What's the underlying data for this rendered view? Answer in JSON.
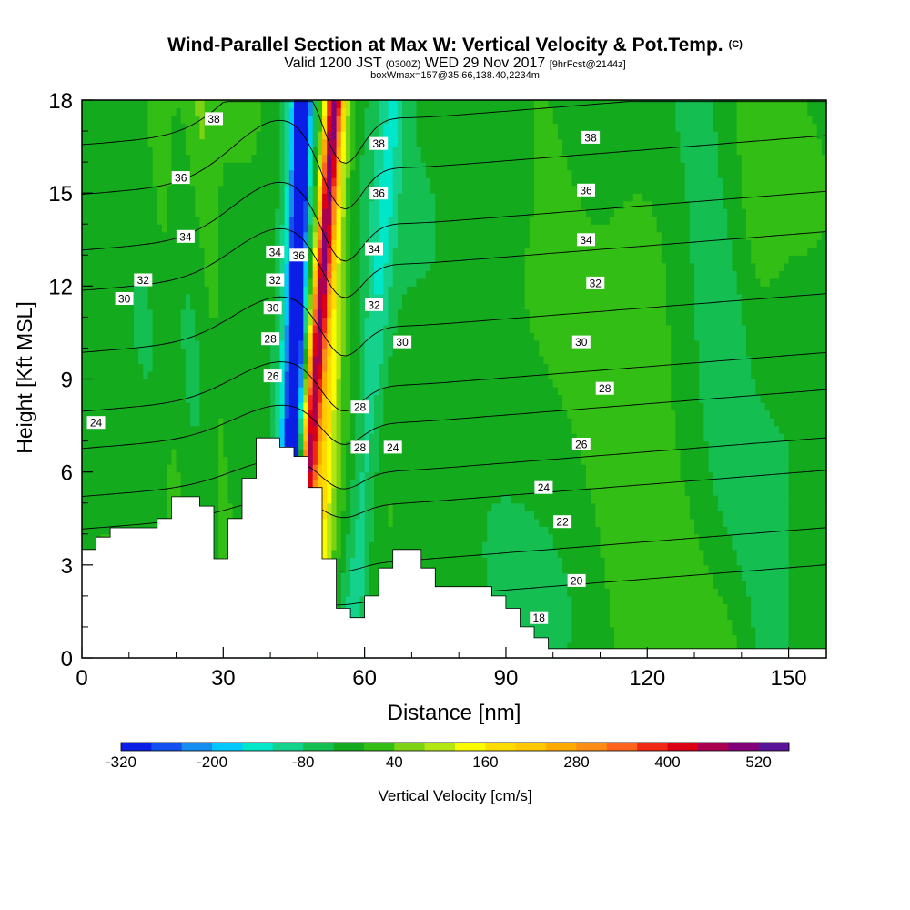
{
  "header": {
    "title": "Wind-Parallel Section at Max W: Vertical Velocity & Pot.Temp.",
    "copyright": "(C)",
    "valid_prefix": "Valid 1200 JST",
    "valid_utc": "(0300Z)",
    "valid_date": "WED 29 Nov 2017",
    "forecast": "[9hrFcst@2144z]",
    "box_info": "boxWmax=157@35.66,138.40,2234m"
  },
  "colorbar": {
    "label": "Vertical Velocity [cm/s]",
    "tick_labels": [
      "-320",
      "-200",
      "-80",
      "40",
      "160",
      "280",
      "400",
      "520"
    ],
    "colors": [
      "#0a1ee6",
      "#1450f0",
      "#148cf0",
      "#00c8ff",
      "#00e6c8",
      "#14d28c",
      "#14be50",
      "#14aa1e",
      "#32be14",
      "#7dd214",
      "#b4e614",
      "#fafa00",
      "#ffdc00",
      "#ffc800",
      "#ffaa00",
      "#ff8c14",
      "#ff641e",
      "#f02814",
      "#dc0014",
      "#aa0050",
      "#820078",
      "#5a1496"
    ]
  },
  "chart_data": {
    "type": "heatmap",
    "title": "Wind-Parallel Section at Max W: Vertical Velocity & Pot.Temp.",
    "xlabel": "Distance [nm]",
    "ylabel": "Height [Kft MSL]",
    "xlim": [
      0,
      158
    ],
    "ylim": [
      0,
      18
    ],
    "x_ticks": [
      0,
      30,
      60,
      90,
      120,
      150
    ],
    "y_ticks": [
      0,
      3,
      6,
      9,
      12,
      15,
      18
    ],
    "background_value": -20,
    "plumes": [
      {
        "x0": 53.5,
        "dxdy": -0.45,
        "width": 1.7,
        "value": 380
      },
      {
        "x0": 54.5,
        "dxdy": -0.3,
        "width": 3.0,
        "value": 180
      },
      {
        "x0": 47,
        "dxdy": -0.2,
        "width": 1.6,
        "value": -290
      },
      {
        "x0": 46,
        "dxdy": -0.2,
        "width": 3.0,
        "value": -150
      },
      {
        "x0": 25,
        "dxdy": 0.4,
        "width": 2.5,
        "value": 40
      },
      {
        "x0": 16,
        "dxdy": 0.3,
        "width": 2.5,
        "value": 35
      },
      {
        "x0": 66,
        "dxdy": -0.5,
        "width": 3.0,
        "value": -90
      },
      {
        "x0": 98,
        "dxdy": 1.0,
        "width": 4.0,
        "value": 25
      },
      {
        "x0": 118,
        "dxdy": 0.5,
        "width": 10.0,
        "value": 30
      },
      {
        "x0": 145,
        "dxdy": -0.3,
        "width": 5.0,
        "value": 22
      },
      {
        "x0": 130,
        "dxdy": 0.8,
        "width": 6.0,
        "value": -45
      }
    ],
    "terrain": [
      [
        0,
        3.5
      ],
      [
        3,
        3.5
      ],
      [
        3,
        3.9
      ],
      [
        6,
        3.9
      ],
      [
        6,
        4.2
      ],
      [
        16,
        4.2
      ],
      [
        16,
        4.5
      ],
      [
        19,
        4.5
      ],
      [
        19,
        5.2
      ],
      [
        25,
        5.2
      ],
      [
        25,
        4.9
      ],
      [
        28,
        4.9
      ],
      [
        28,
        3.2
      ],
      [
        31,
        3.2
      ],
      [
        31,
        4.5
      ],
      [
        34,
        4.5
      ],
      [
        34,
        5.8
      ],
      [
        37,
        5.8
      ],
      [
        37,
        7.1
      ],
      [
        42,
        7.1
      ],
      [
        42,
        6.8
      ],
      [
        45,
        6.8
      ],
      [
        45,
        6.5
      ],
      [
        48,
        6.5
      ],
      [
        48,
        5.5
      ],
      [
        51,
        5.5
      ],
      [
        51,
        3.2
      ],
      [
        54,
        3.2
      ],
      [
        54,
        1.6
      ],
      [
        57,
        1.6
      ],
      [
        57,
        1.3
      ],
      [
        60,
        1.3
      ],
      [
        60,
        2.0
      ],
      [
        63,
        2.0
      ],
      [
        63,
        2.9
      ],
      [
        66,
        2.9
      ],
      [
        66,
        3.5
      ],
      [
        72,
        3.5
      ],
      [
        72,
        2.9
      ],
      [
        75,
        2.9
      ],
      [
        75,
        2.3
      ],
      [
        87,
        2.3
      ],
      [
        87,
        2.0
      ],
      [
        90,
        2.0
      ],
      [
        90,
        1.6
      ],
      [
        93,
        1.6
      ],
      [
        93,
        1.0
      ],
      [
        96,
        1.0
      ],
      [
        96,
        0.65
      ],
      [
        99,
        0.65
      ],
      [
        99,
        0.3
      ],
      [
        158,
        0.3
      ],
      [
        158,
        0
      ],
      [
        0,
        0
      ]
    ],
    "theta_contours": [
      {
        "value": 18,
        "start_height": 1.35
      },
      {
        "value": 20,
        "start_height": 2.55
      },
      {
        "value": 22,
        "start_height": 4.4
      },
      {
        "value": 24,
        "start_height": 5.45
      },
      {
        "value": 26,
        "start_height": 7.0
      },
      {
        "value": 28,
        "start_height": 8.2
      },
      {
        "value": 30,
        "start_height": 10.1
      },
      {
        "value": 32,
        "start_height": 12.1
      },
      {
        "value": 34,
        "start_height": 13.4
      },
      {
        "value": 36,
        "start_height": 15.2
      },
      {
        "value": 38,
        "start_height": 16.8
      }
    ],
    "contour_labels": [
      {
        "text": "24",
        "x": 3,
        "y": 7.6
      },
      {
        "text": "30",
        "x": 9,
        "y": 11.6
      },
      {
        "text": "32",
        "x": 13,
        "y": 12.2
      },
      {
        "text": "34",
        "x": 22,
        "y": 13.6
      },
      {
        "text": "36",
        "x": 21,
        "y": 15.5
      },
      {
        "text": "38",
        "x": 28,
        "y": 17.4
      },
      {
        "text": "34",
        "x": 41,
        "y": 13.1
      },
      {
        "text": "32",
        "x": 41,
        "y": 12.2
      },
      {
        "text": "30",
        "x": 40.5,
        "y": 11.3
      },
      {
        "text": "28",
        "x": 40,
        "y": 10.3
      },
      {
        "text": "26",
        "x": 40.5,
        "y": 9.1
      },
      {
        "text": "36",
        "x": 46,
        "y": 13.0
      },
      {
        "text": "38",
        "x": 63,
        "y": 16.6
      },
      {
        "text": "36",
        "x": 63,
        "y": 15.0
      },
      {
        "text": "34",
        "x": 62,
        "y": 13.2
      },
      {
        "text": "32",
        "x": 62,
        "y": 11.4
      },
      {
        "text": "30",
        "x": 68,
        "y": 10.2
      },
      {
        "text": "28",
        "x": 59,
        "y": 8.1
      },
      {
        "text": "28",
        "x": 59,
        "y": 6.8
      },
      {
        "text": "24",
        "x": 66,
        "y": 6.8
      },
      {
        "text": "38",
        "x": 108,
        "y": 16.8
      },
      {
        "text": "36",
        "x": 107,
        "y": 15.1
      },
      {
        "text": "34",
        "x": 107,
        "y": 13.5
      },
      {
        "text": "32",
        "x": 109,
        "y": 12.1
      },
      {
        "text": "30",
        "x": 106,
        "y": 10.2
      },
      {
        "text": "28",
        "x": 111,
        "y": 8.7
      },
      {
        "text": "26",
        "x": 106,
        "y": 6.9
      },
      {
        "text": "24",
        "x": 98,
        "y": 5.5
      },
      {
        "text": "22",
        "x": 102,
        "y": 4.4
      },
      {
        "text": "20",
        "x": 105,
        "y": 2.5
      },
      {
        "text": "18",
        "x": 97,
        "y": 1.3
      }
    ]
  }
}
